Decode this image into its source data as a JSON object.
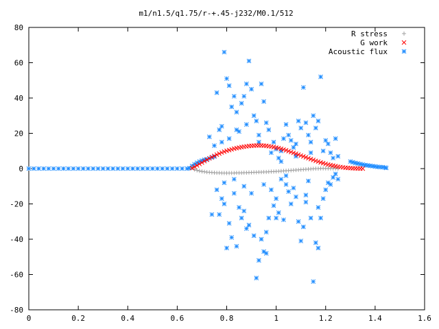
{
  "chart_data": {
    "type": "scatter",
    "title": "m1/n1.5/q1.75/r-+.45-j232/M0.1/512",
    "xlabel": "",
    "ylabel": "",
    "xlim": [
      0,
      1.6
    ],
    "ylim": [
      -80,
      80
    ],
    "x_ticks": [
      "0",
      "0.2",
      "0.4",
      "0.6",
      "0.8",
      "1",
      "1.2",
      "1.4",
      "1.6"
    ],
    "y_ticks": [
      "80",
      "60",
      "40",
      "20",
      "0",
      "-20",
      "-40",
      "-60",
      "-80"
    ],
    "x_tick_values": [
      0,
      0.2,
      0.4,
      0.6,
      0.8,
      1.0,
      1.2,
      1.4,
      1.6
    ],
    "y_tick_values": [
      80,
      60,
      40,
      20,
      0,
      -20,
      -40,
      -60,
      -80
    ],
    "grid": false,
    "legend_position": "top-right",
    "series": [
      {
        "name": "R stress",
        "marker": "plus",
        "color": "#a0a0a0",
        "points": [
          [
            0.66,
            0.5
          ],
          [
            0.67,
            -0.5
          ],
          [
            0.68,
            -1.0
          ],
          [
            0.69,
            -1.3
          ],
          [
            0.7,
            -1.6
          ],
          [
            0.71,
            -1.8
          ],
          [
            0.72,
            -2.0
          ],
          [
            0.73,
            -2.1
          ],
          [
            0.74,
            -2.2
          ],
          [
            0.75,
            -2.3
          ],
          [
            0.76,
            -2.4
          ],
          [
            0.77,
            -2.4
          ],
          [
            0.78,
            -2.5
          ],
          [
            0.79,
            -2.5
          ],
          [
            0.8,
            -2.5
          ],
          [
            0.81,
            -2.5
          ],
          [
            0.82,
            -2.5
          ],
          [
            0.83,
            -2.5
          ],
          [
            0.84,
            -2.4
          ],
          [
            0.85,
            -2.4
          ],
          [
            0.86,
            -2.4
          ],
          [
            0.87,
            -2.3
          ],
          [
            0.88,
            -2.3
          ],
          [
            0.89,
            -2.2
          ],
          [
            0.9,
            -2.2
          ],
          [
            0.91,
            -2.1
          ],
          [
            0.92,
            -2.1
          ],
          [
            0.93,
            -2.0
          ],
          [
            0.94,
            -2.0
          ],
          [
            0.95,
            -1.9
          ],
          [
            0.96,
            -1.9
          ],
          [
            0.97,
            -1.8
          ],
          [
            0.98,
            -1.7
          ],
          [
            0.99,
            -1.7
          ],
          [
            1.0,
            -1.6
          ],
          [
            1.01,
            -1.5
          ],
          [
            1.02,
            -1.4
          ],
          [
            1.03,
            -1.3
          ],
          [
            1.04,
            -1.2
          ],
          [
            1.05,
            -1.1
          ],
          [
            1.06,
            -1.0
          ],
          [
            1.07,
            -0.9
          ],
          [
            1.08,
            -0.8
          ],
          [
            1.09,
            -0.7
          ],
          [
            1.1,
            -0.6
          ],
          [
            1.11,
            -0.5
          ],
          [
            1.12,
            -0.4
          ],
          [
            1.13,
            -0.3
          ],
          [
            1.14,
            -0.2
          ],
          [
            1.15,
            -0.1
          ],
          [
            1.16,
            0.0
          ],
          [
            1.17,
            0.0
          ],
          [
            1.18,
            0.1
          ],
          [
            1.19,
            0.1
          ],
          [
            1.2,
            0.1
          ],
          [
            1.21,
            0.1
          ],
          [
            1.22,
            0.1
          ],
          [
            1.23,
            0.1
          ],
          [
            1.24,
            0.1
          ],
          [
            1.25,
            0.0
          ]
        ]
      },
      {
        "name": "G work",
        "marker": "cross",
        "color": "#ff0000",
        "points": [
          [
            0.66,
            0.3
          ],
          [
            0.67,
            1.0
          ],
          [
            0.68,
            1.8
          ],
          [
            0.69,
            2.6
          ],
          [
            0.7,
            3.4
          ],
          [
            0.71,
            4.2
          ],
          [
            0.72,
            5.0
          ],
          [
            0.73,
            5.8
          ],
          [
            0.74,
            6.5
          ],
          [
            0.75,
            7.2
          ],
          [
            0.76,
            7.9
          ],
          [
            0.77,
            8.5
          ],
          [
            0.78,
            9.1
          ],
          [
            0.79,
            9.6
          ],
          [
            0.8,
            10.1
          ],
          [
            0.81,
            10.5
          ],
          [
            0.82,
            10.9
          ],
          [
            0.83,
            11.3
          ],
          [
            0.84,
            11.6
          ],
          [
            0.85,
            11.9
          ],
          [
            0.86,
            12.2
          ],
          [
            0.87,
            12.4
          ],
          [
            0.88,
            12.6
          ],
          [
            0.89,
            12.8
          ],
          [
            0.9,
            12.9
          ],
          [
            0.91,
            13.0
          ],
          [
            0.92,
            13.1
          ],
          [
            0.93,
            13.1
          ],
          [
            0.94,
            13.1
          ],
          [
            0.95,
            13.0
          ],
          [
            0.96,
            12.9
          ],
          [
            0.97,
            12.7
          ],
          [
            0.98,
            12.5
          ],
          [
            0.99,
            12.2
          ],
          [
            1.0,
            11.9
          ],
          [
            1.01,
            11.6
          ],
          [
            1.02,
            11.2
          ],
          [
            1.03,
            10.8
          ],
          [
            1.04,
            10.4
          ],
          [
            1.05,
            9.9
          ],
          [
            1.06,
            9.4
          ],
          [
            1.07,
            8.9
          ],
          [
            1.08,
            8.4
          ],
          [
            1.09,
            7.9
          ],
          [
            1.1,
            7.4
          ],
          [
            1.11,
            6.9
          ],
          [
            1.12,
            6.4
          ],
          [
            1.13,
            5.9
          ],
          [
            1.14,
            5.4
          ],
          [
            1.15,
            4.9
          ],
          [
            1.16,
            4.4
          ],
          [
            1.17,
            4.0
          ],
          [
            1.18,
            3.5
          ],
          [
            1.19,
            3.1
          ],
          [
            1.2,
            2.7
          ],
          [
            1.21,
            2.3
          ],
          [
            1.22,
            2.0
          ],
          [
            1.23,
            1.7
          ],
          [
            1.24,
            1.4
          ],
          [
            1.25,
            1.1
          ],
          [
            1.26,
            0.9
          ],
          [
            1.27,
            0.7
          ],
          [
            1.28,
            0.5
          ],
          [
            1.29,
            0.4
          ],
          [
            1.3,
            0.3
          ],
          [
            1.31,
            0.2
          ],
          [
            1.32,
            0.15
          ],
          [
            1.33,
            0.1
          ],
          [
            1.34,
            0.05
          ],
          [
            1.35,
            0.0
          ]
        ]
      },
      {
        "name": "Acoustic flux",
        "marker": "star",
        "color": "#1e8cff",
        "points": [
          [
            0.0,
            0
          ],
          [
            0.02,
            0
          ],
          [
            0.04,
            0
          ],
          [
            0.06,
            0
          ],
          [
            0.08,
            0
          ],
          [
            0.1,
            0
          ],
          [
            0.12,
            0
          ],
          [
            0.14,
            0
          ],
          [
            0.16,
            0
          ],
          [
            0.18,
            0
          ],
          [
            0.2,
            0
          ],
          [
            0.22,
            0
          ],
          [
            0.24,
            0
          ],
          [
            0.26,
            0
          ],
          [
            0.28,
            0
          ],
          [
            0.3,
            0
          ],
          [
            0.32,
            0
          ],
          [
            0.34,
            0
          ],
          [
            0.36,
            0
          ],
          [
            0.38,
            0
          ],
          [
            0.4,
            0
          ],
          [
            0.42,
            0
          ],
          [
            0.44,
            0
          ],
          [
            0.46,
            0
          ],
          [
            0.48,
            0
          ],
          [
            0.5,
            0
          ],
          [
            0.52,
            0
          ],
          [
            0.54,
            0
          ],
          [
            0.56,
            0
          ],
          [
            0.58,
            0
          ],
          [
            0.6,
            0
          ],
          [
            0.62,
            0
          ],
          [
            0.64,
            0
          ],
          [
            0.65,
            0.3
          ],
          [
            0.66,
            1.5
          ],
          [
            0.67,
            2.5
          ],
          [
            0.68,
            3.3
          ],
          [
            0.69,
            4.0
          ],
          [
            0.7,
            4.5
          ],
          [
            0.71,
            5.0
          ],
          [
            0.72,
            5.3
          ],
          [
            0.73,
            5.8
          ],
          [
            0.74,
            6.3
          ],
          [
            0.75,
            6.8
          ],
          [
            1.3,
            4.0
          ],
          [
            1.31,
            3.6
          ],
          [
            1.32,
            3.2
          ],
          [
            1.33,
            2.9
          ],
          [
            1.34,
            2.6
          ],
          [
            1.35,
            2.3
          ],
          [
            1.36,
            2.0
          ],
          [
            1.37,
            1.8
          ],
          [
            1.38,
            1.6
          ],
          [
            1.39,
            1.4
          ],
          [
            1.4,
            1.2
          ],
          [
            1.41,
            1.0
          ],
          [
            1.42,
            0.9
          ],
          [
            1.43,
            0.8
          ],
          [
            1.44,
            0.6
          ],
          [
            1.445,
            0.4
          ],
          [
            0.76,
            43
          ],
          [
            0.77,
            22
          ],
          [
            0.78,
            24
          ],
          [
            0.79,
            66
          ],
          [
            0.8,
            51
          ],
          [
            0.81,
            47
          ],
          [
            0.82,
            35
          ],
          [
            0.83,
            41
          ],
          [
            0.84,
            32
          ],
          [
            0.85,
            21
          ],
          [
            0.86,
            37
          ],
          [
            0.87,
            41
          ],
          [
            0.88,
            48
          ],
          [
            0.89,
            61
          ],
          [
            0.9,
            45
          ],
          [
            0.91,
            30
          ],
          [
            0.92,
            27
          ],
          [
            0.93,
            19
          ],
          [
            0.94,
            48
          ],
          [
            0.95,
            38
          ],
          [
            0.96,
            26
          ],
          [
            0.97,
            22
          ],
          [
            0.98,
            9
          ],
          [
            0.99,
            15
          ],
          [
            1.0,
            11
          ],
          [
            1.01,
            6
          ],
          [
            1.02,
            4
          ],
          [
            1.03,
            17
          ],
          [
            1.04,
            25
          ],
          [
            1.05,
            19
          ],
          [
            1.06,
            16
          ],
          [
            1.07,
            12
          ],
          [
            1.08,
            7
          ],
          [
            1.09,
            27
          ],
          [
            1.1,
            23
          ],
          [
            1.11,
            46
          ],
          [
            1.12,
            26
          ],
          [
            1.13,
            19
          ],
          [
            1.14,
            15
          ],
          [
            1.15,
            30
          ],
          [
            1.16,
            23
          ],
          [
            1.17,
            27
          ],
          [
            1.18,
            52
          ],
          [
            1.19,
            10
          ],
          [
            1.2,
            16
          ],
          [
            1.21,
            14
          ],
          [
            1.22,
            9
          ],
          [
            1.23,
            6
          ],
          [
            1.24,
            17
          ],
          [
            1.25,
            7
          ],
          [
            0.73,
            18
          ],
          [
            0.75,
            13
          ],
          [
            0.78,
            15
          ],
          [
            0.81,
            17
          ],
          [
            0.84,
            22
          ],
          [
            0.88,
            25
          ],
          [
            0.93,
            15
          ],
          [
            1.02,
            10
          ],
          [
            1.08,
            14
          ],
          [
            1.14,
            9
          ],
          [
            0.76,
            -12
          ],
          [
            0.77,
            -26
          ],
          [
            0.78,
            -17
          ],
          [
            0.79,
            -20
          ],
          [
            0.8,
            -45
          ],
          [
            0.81,
            -31
          ],
          [
            0.82,
            -39
          ],
          [
            0.83,
            -14
          ],
          [
            0.84,
            -44
          ],
          [
            0.85,
            -22
          ],
          [
            0.86,
            -28
          ],
          [
            0.87,
            -24
          ],
          [
            0.88,
            -34
          ],
          [
            0.89,
            -32
          ],
          [
            0.9,
            -14
          ],
          [
            0.91,
            -38
          ],
          [
            0.92,
            -62
          ],
          [
            0.93,
            -52
          ],
          [
            0.94,
            -40
          ],
          [
            0.95,
            -47
          ],
          [
            0.96,
            -36
          ],
          [
            0.97,
            -28
          ],
          [
            0.98,
            -12
          ],
          [
            0.99,
            -21
          ],
          [
            1.0,
            -17
          ],
          [
            1.01,
            -25
          ],
          [
            1.02,
            -6
          ],
          [
            1.03,
            -29
          ],
          [
            1.04,
            -9
          ],
          [
            1.05,
            -13
          ],
          [
            1.06,
            -20
          ],
          [
            1.07,
            -11
          ],
          [
            1.08,
            -16
          ],
          [
            1.09,
            -30
          ],
          [
            1.1,
            -41
          ],
          [
            1.11,
            -33
          ],
          [
            1.12,
            -19
          ],
          [
            1.13,
            -7
          ],
          [
            1.14,
            -28
          ],
          [
            1.15,
            -64
          ],
          [
            1.16,
            -42
          ],
          [
            1.17,
            -22
          ],
          [
            1.18,
            -28
          ],
          [
            1.19,
            -17
          ],
          [
            1.2,
            -12
          ],
          [
            1.21,
            -8
          ],
          [
            1.22,
            -9
          ],
          [
            1.23,
            -5
          ],
          [
            1.24,
            -3
          ],
          [
            1.25,
            -6
          ],
          [
            0.74,
            -26
          ],
          [
            0.79,
            -8
          ],
          [
            0.83,
            -6
          ],
          [
            0.87,
            -10
          ],
          [
            0.95,
            -9
          ],
          [
            1.04,
            -4
          ],
          [
            1.12,
            -15
          ],
          [
            1.17,
            -45
          ],
          [
            0.96,
            -48
          ],
          [
            1.0,
            -28
          ]
        ]
      }
    ]
  }
}
